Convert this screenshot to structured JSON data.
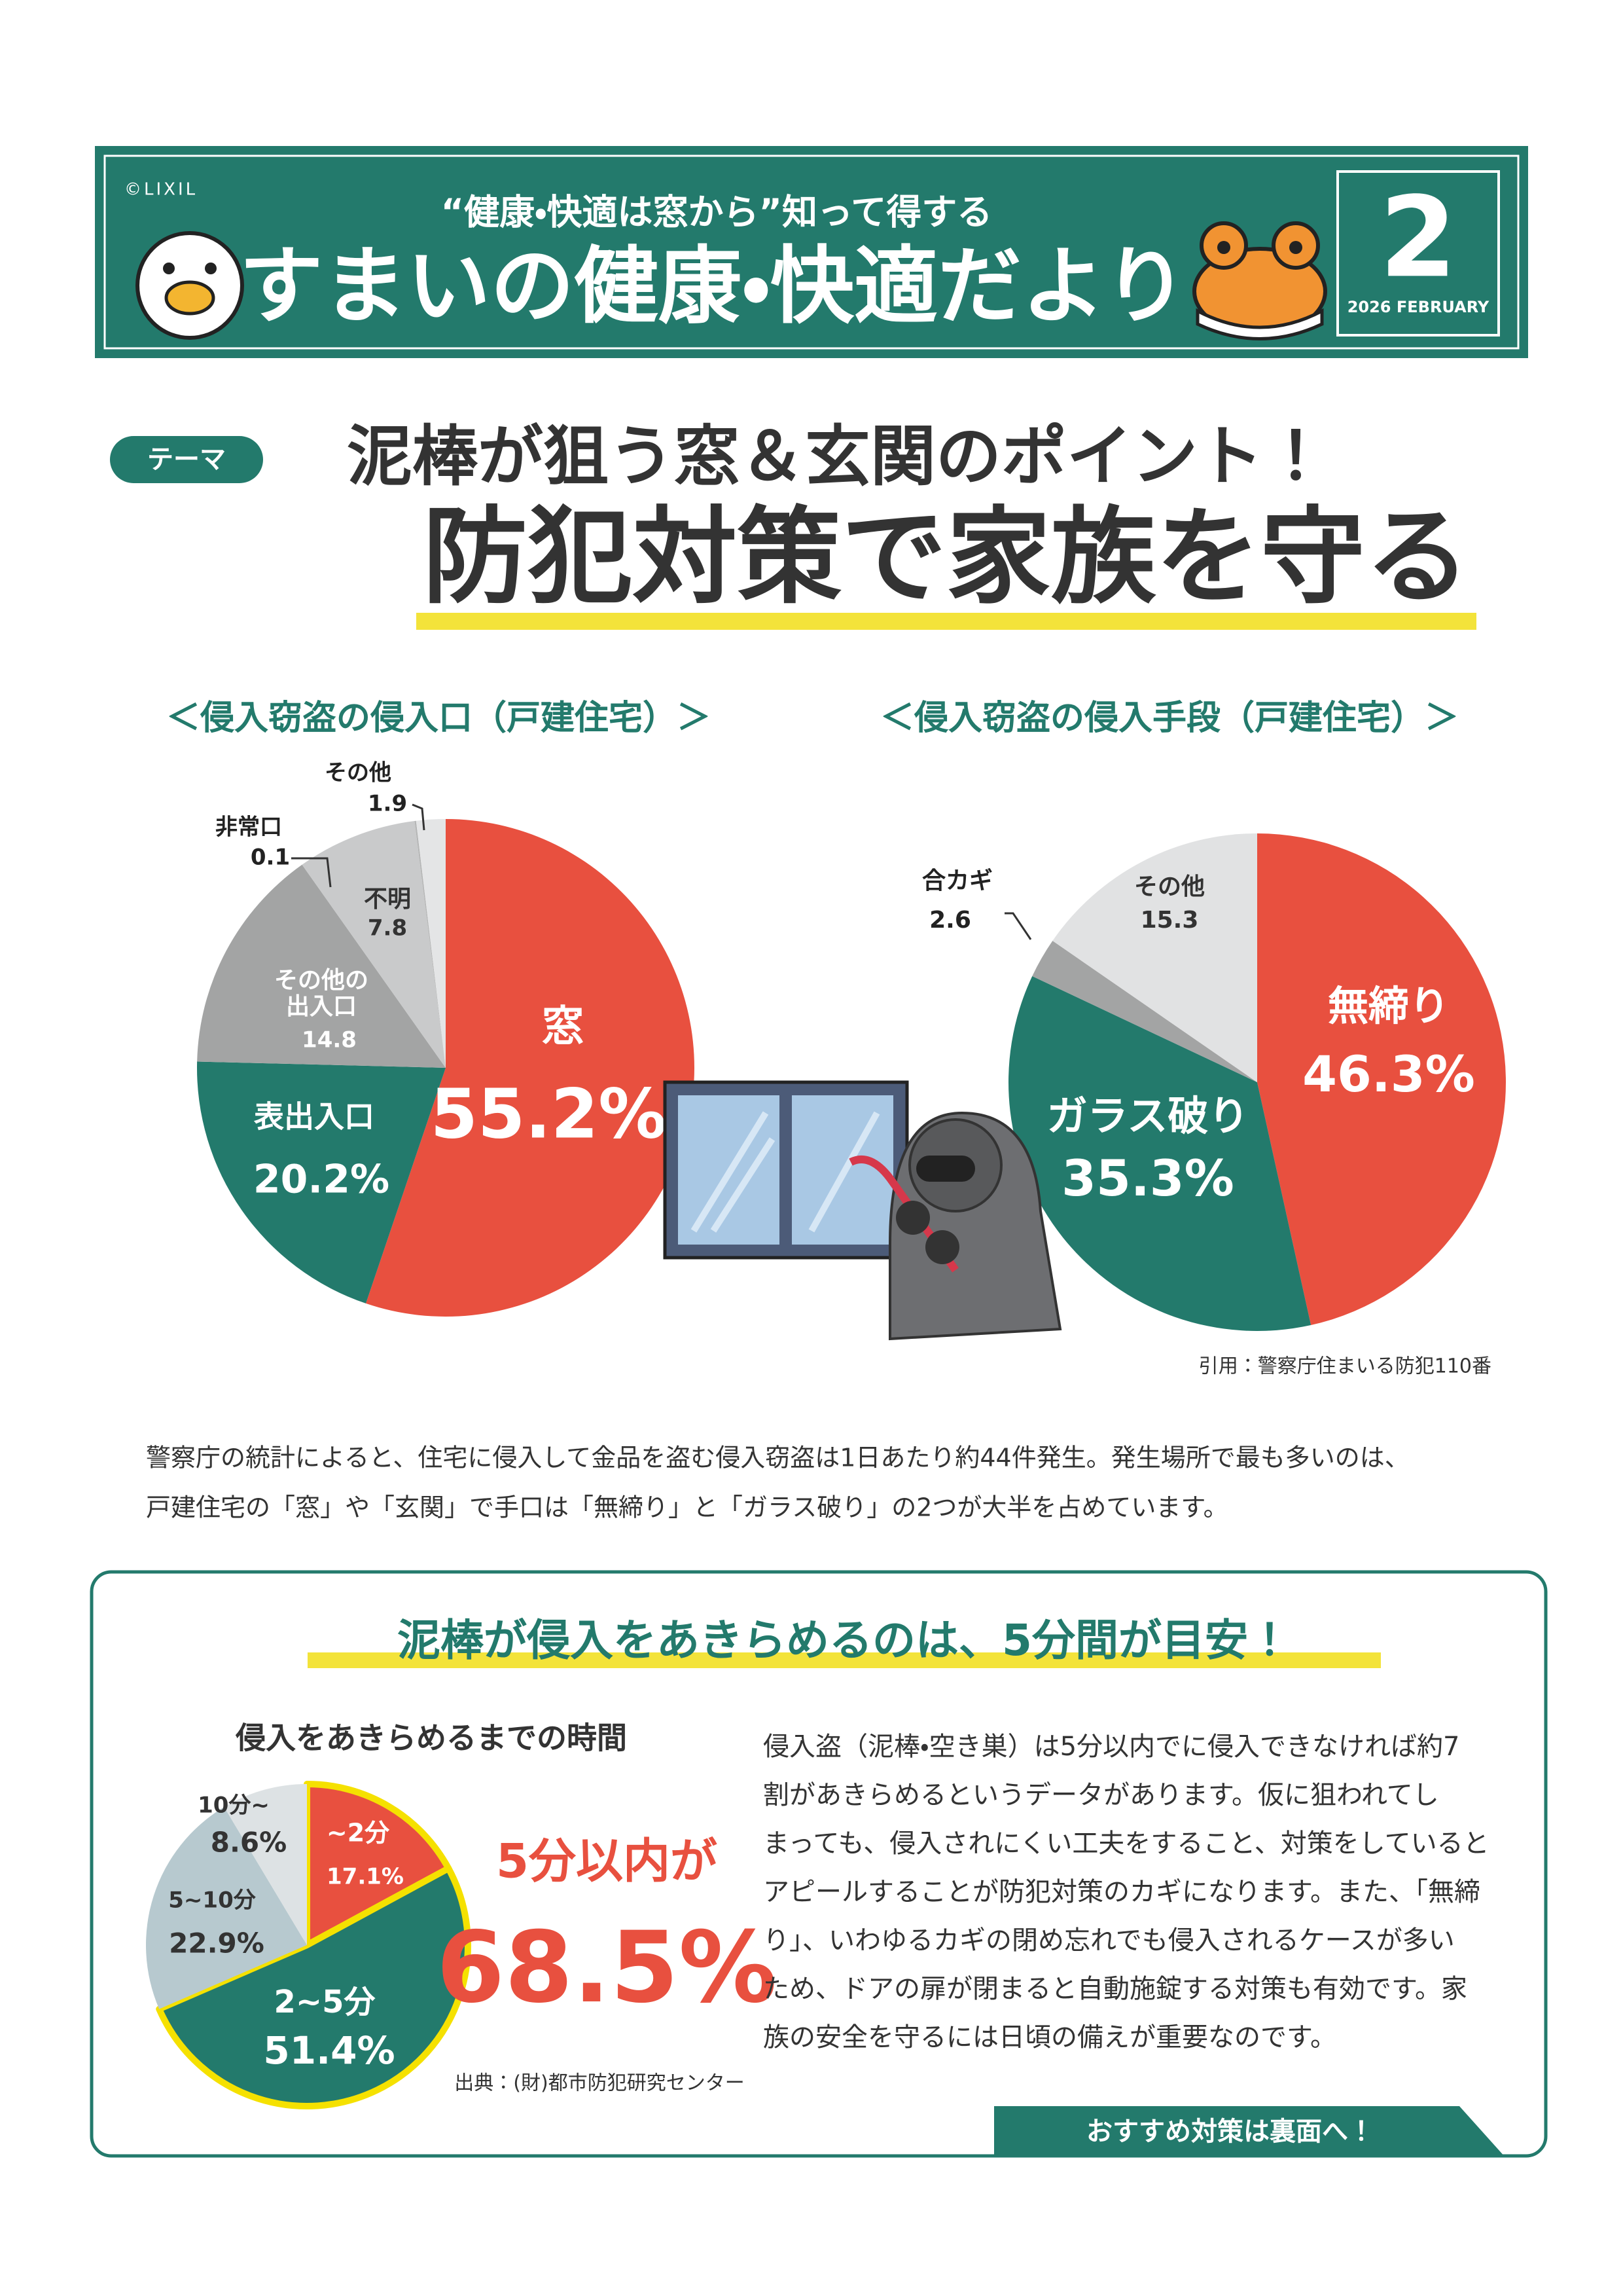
{
  "header": {
    "copyright": "©LIXIL",
    "tagline": "“健康・快適は窓から”知って得する",
    "title": "すまいの健康・快適だより",
    "issue_number": "2",
    "issue_date": "2026 FEBRUARY"
  },
  "theme": {
    "tag": "テーマ",
    "subtitle": "泥棒が狙う窓＆玄関のポイント！",
    "title": "防犯対策で家族を守る"
  },
  "chart_data": [
    {
      "type": "pie",
      "title": "＜侵入窃盗の侵入口（戸建住宅）＞",
      "categories": [
        "窓",
        "表出入口",
        "その他の\n出入口",
        "不明",
        "非常口",
        "その他"
      ],
      "values": [
        55.2,
        20.2,
        14.8,
        7.8,
        0.1,
        1.9
      ],
      "value_labels": [
        "55.2%",
        "20.2%",
        "14.8",
        "7.8",
        "0.1",
        "1.9"
      ],
      "colors": [
        "#e8503f",
        "#237a6c",
        "#a3a4a4",
        "#c9cacb",
        "#b5b6b6",
        "#e4e5e6"
      ]
    },
    {
      "type": "pie",
      "title": "＜侵入窃盗の侵入手段（戸建住宅）＞",
      "categories": [
        "無締り",
        "ガラス破り",
        "合カギ",
        "その他"
      ],
      "values": [
        46.3,
        35.3,
        2.6,
        15.3
      ],
      "value_labels": [
        "46.3%",
        "35.3%",
        "2.6",
        "15.3"
      ],
      "colors": [
        "#e8503f",
        "#237a6c",
        "#a3a4a4",
        "#e1e2e3"
      ]
    },
    {
      "type": "pie",
      "title": "侵入をあきらめるまでの時間",
      "categories": [
        "~2分",
        "2~5分",
        "5~10分",
        "10分~"
      ],
      "values": [
        17.1,
        51.4,
        22.9,
        8.6
      ],
      "value_labels": [
        "17.1%",
        "51.4%",
        "22.9%",
        "8.6%"
      ],
      "colors": [
        "#e8503f",
        "#237a6c",
        "#b7c9cf",
        "#dde2e4"
      ]
    }
  ],
  "citation": "引用：警察庁住まいる防犯110番",
  "intro": {
    "lines": [
      "警察庁の統計によると、住宅に侵入して金品を盗む侵入窃盗は1日あたり約44件発生。発生場所で最も多いのは、",
      "戸建住宅の「窓」や「玄関」で手口は「無締り」と「ガラス破り」の2つが大半を占めています。"
    ]
  },
  "box": {
    "heading": "泥棒が侵入をあきらめるのは、5分間が目安！",
    "callout": {
      "label": "5分以内が",
      "value": "68.5%"
    },
    "source": "出典：(財)都市防犯研究センター",
    "lines": [
      "侵入盗（泥棒・空き巣）は5分以内でに侵入できなければ約7",
      "割があきらめるというデータがあります。仮に狙われてし",
      "まっても、侵入されにくい工夫をすること、対策をしていると",
      "アピールすることが防犯対策のカギになります。また、「無締",
      "り」、いわゆるカギの閉め忘れでも侵入されるケースが多い",
      "ため、ドアの扉が閉まると自動施錠する対策も有効です。家",
      "族の安全を守るには日頃の備えが重要なのです。"
    ],
    "next": "おすすめ対策は裏面へ！"
  }
}
